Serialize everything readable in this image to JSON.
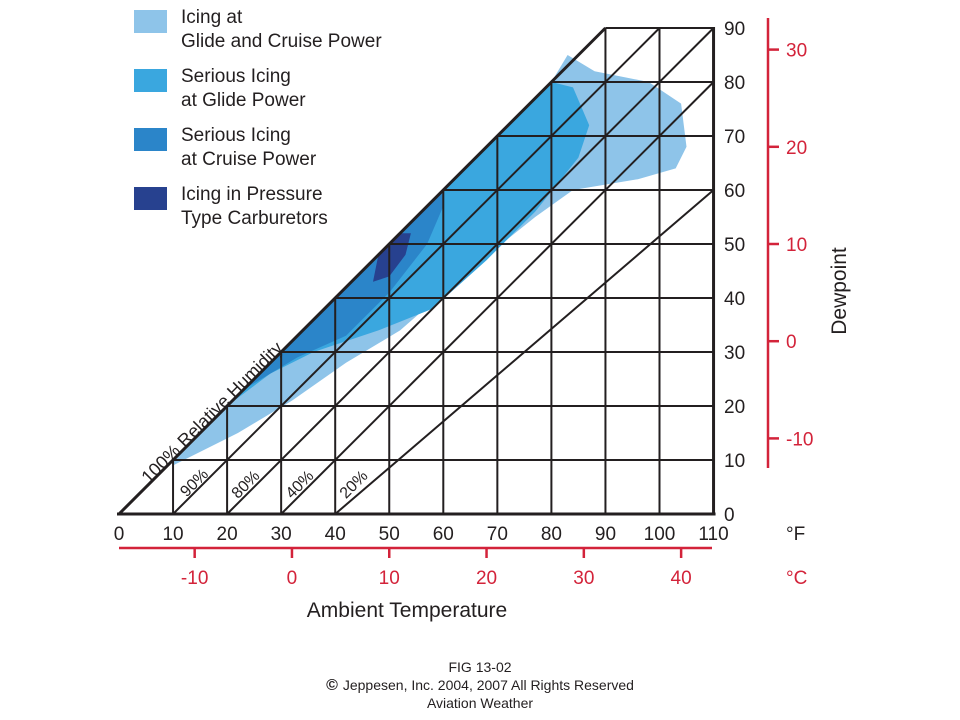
{
  "legend": [
    {
      "lines": [
        "Icing at",
        "Glide and Cruise Power"
      ],
      "color": "#8ec4e9"
    },
    {
      "lines": [
        "Serious Icing",
        "at Glide Power"
      ],
      "color": "#3aa7df"
    },
    {
      "lines": [
        "Serious Icing",
        "at Cruise Power"
      ],
      "color": "#2b85c9"
    },
    {
      "lines": [
        "Icing in Pressure",
        "Type Carburetors"
      ],
      "color": "#27418f"
    }
  ],
  "caption": {
    "fig": "FIG 13-02",
    "copyright_symbol": "©",
    "copyright": "Jeppesen, Inc. 2004, 2007 All Rights Reserved",
    "source": "Aviation Weather"
  },
  "chart_data": {
    "type": "area",
    "title": "",
    "xlabel": "Ambient Temperature",
    "ylabel": "Dewpoint",
    "x_unit": "°F",
    "x2_unit": "°C",
    "xlim": [
      0,
      110
    ],
    "ylim": [
      0,
      90
    ],
    "x_ticks": [
      0,
      10,
      20,
      30,
      40,
      50,
      60,
      70,
      80,
      90,
      100,
      110
    ],
    "x_tick_labels": [
      "0",
      "10",
      "20",
      "30",
      "40",
      "50",
      "60",
      "70",
      "80",
      "90",
      "100",
      "110"
    ],
    "y_ticks": [
      0,
      10,
      20,
      30,
      40,
      50,
      60,
      70,
      80,
      90
    ],
    "y_tick_labels": [
      "0",
      "10",
      "20",
      "30",
      "40",
      "50",
      "60",
      "70",
      "80",
      "90"
    ],
    "x2_ticks_c": [
      -10,
      0,
      10,
      20,
      30,
      40
    ],
    "x2_tick_labels": [
      "-10",
      "0",
      "10",
      "20",
      "30",
      "40"
    ],
    "y2_ticks_c": [
      30,
      20,
      10,
      0,
      -10
    ],
    "y2_tick_labels": [
      "30",
      "20",
      "10",
      "0",
      "-10"
    ],
    "humidity_lines": [
      {
        "label": "100% Relative Humidity",
        "points": [
          [
            0,
            0
          ],
          [
            90,
            90
          ]
        ]
      },
      {
        "label": "90%",
        "points": [
          [
            10,
            0
          ],
          [
            100,
            90
          ]
        ]
      },
      {
        "label": "80%",
        "points": [
          [
            20,
            0
          ],
          [
            110,
            90
          ]
        ]
      },
      {
        "label": "40%",
        "points": [
          [
            30,
            0
          ],
          [
            110,
            80
          ]
        ]
      },
      {
        "label": "20%",
        "points": [
          [
            40,
            0
          ],
          [
            110,
            60
          ]
        ]
      }
    ],
    "series": [
      {
        "name": "Icing at Glide and Cruise Power",
        "color": "#8ec4e9",
        "points": [
          [
            10,
            9
          ],
          [
            22,
            15
          ],
          [
            32,
            21
          ],
          [
            42,
            28
          ],
          [
            52,
            34
          ],
          [
            60,
            41
          ],
          [
            66,
            46
          ],
          [
            72,
            51
          ],
          [
            77,
            55
          ],
          [
            84,
            60
          ],
          [
            96,
            62
          ],
          [
            103,
            64
          ],
          [
            105,
            68
          ],
          [
            104,
            76
          ],
          [
            98,
            80
          ],
          [
            88,
            82
          ],
          [
            83,
            85
          ],
          [
            80,
            80
          ],
          [
            70,
            70
          ],
          [
            60,
            60
          ],
          [
            50,
            50
          ],
          [
            40,
            40
          ],
          [
            30,
            30
          ],
          [
            20,
            20
          ],
          [
            10,
            10
          ]
        ]
      },
      {
        "name": "Serious Icing at Glide Power",
        "color": "#3aa7df",
        "points": [
          [
            20,
            20
          ],
          [
            28,
            26
          ],
          [
            36,
            30
          ],
          [
            48,
            34
          ],
          [
            58,
            38
          ],
          [
            68,
            47
          ],
          [
            77,
            56
          ],
          [
            85,
            66
          ],
          [
            87,
            72
          ],
          [
            84,
            79
          ],
          [
            80,
            80
          ],
          [
            70,
            70
          ],
          [
            60,
            60
          ],
          [
            50,
            50
          ],
          [
            40,
            40
          ],
          [
            30,
            30
          ]
        ]
      },
      {
        "name": "Serious Icing at Cruise Power",
        "color": "#2b85c9",
        "points": [
          [
            23,
            23
          ],
          [
            33,
            29
          ],
          [
            42,
            33
          ],
          [
            50,
            41
          ],
          [
            57,
            50
          ],
          [
            60,
            57
          ],
          [
            60,
            60
          ],
          [
            50,
            50
          ],
          [
            40,
            40
          ],
          [
            30,
            30
          ]
        ]
      },
      {
        "name": "Icing in Pressure Type Carburetors",
        "color": "#27418f",
        "points": [
          [
            47,
            43
          ],
          [
            50,
            44
          ],
          [
            53,
            48
          ],
          [
            54,
            52
          ],
          [
            52,
            52
          ],
          [
            50,
            50
          ],
          [
            48,
            48
          ]
        ]
      }
    ]
  }
}
